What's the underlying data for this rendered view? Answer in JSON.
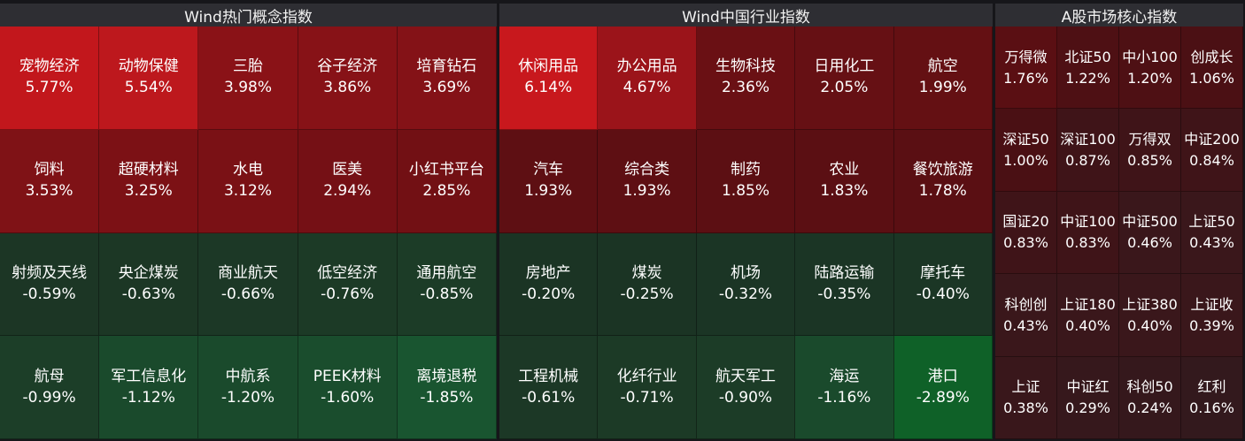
{
  "panels": [
    {
      "title": "Wind热门概念指数",
      "cells": [
        {
          "name": "宠物经济",
          "pct": "5.77%",
          "color": "#c2171c"
        },
        {
          "name": "动物保健",
          "pct": "5.54%",
          "color": "#bd181d"
        },
        {
          "name": "三胎",
          "pct": "3.98%",
          "color": "#8a1217"
        },
        {
          "name": "谷子经济",
          "pct": "3.86%",
          "color": "#871217"
        },
        {
          "name": "培育钻石",
          "pct": "3.69%",
          "color": "#841217"
        },
        {
          "name": "饲料",
          "pct": "3.53%",
          "color": "#7f1216"
        },
        {
          "name": "超硬材料",
          "pct": "3.25%",
          "color": "#7c1115"
        },
        {
          "name": "水电",
          "pct": "3.12%",
          "color": "#7a1115"
        },
        {
          "name": "医美",
          "pct": "2.94%",
          "color": "#751015"
        },
        {
          "name": "小红书平台",
          "pct": "2.85%",
          "color": "#721014"
        },
        {
          "name": "射频及天线",
          "pct": "-0.59%",
          "color": "#1c3625"
        },
        {
          "name": "央企煤炭",
          "pct": "-0.63%",
          "color": "#1c3725"
        },
        {
          "name": "商业航天",
          "pct": "-0.66%",
          "color": "#1c3826"
        },
        {
          "name": "低空经济",
          "pct": "-0.76%",
          "color": "#1c3a26"
        },
        {
          "name": "通用航空",
          "pct": "-0.85%",
          "color": "#1c3c27"
        },
        {
          "name": "航母",
          "pct": "-0.99%",
          "color": "#1c3e28"
        },
        {
          "name": "军工信息化",
          "pct": "-1.12%",
          "color": "#1a4a2c"
        },
        {
          "name": "中航系",
          "pct": "-1.20%",
          "color": "#1a4a2c"
        },
        {
          "name": "PEEK材料",
          "pct": "-1.60%",
          "color": "#1a4d2d"
        },
        {
          "name": "离境退税",
          "pct": "-1.85%",
          "color": "#195530"
        }
      ]
    },
    {
      "title": "Wind中国行业指数",
      "cells": [
        {
          "name": "休闲用品",
          "pct": "6.14%",
          "color": "#c8181d"
        },
        {
          "name": "办公用品",
          "pct": "4.67%",
          "color": "#9b141a"
        },
        {
          "name": "生物科技",
          "pct": "2.36%",
          "color": "#6a1014"
        },
        {
          "name": "日用化工",
          "pct": "2.05%",
          "color": "#661014"
        },
        {
          "name": "航空",
          "pct": "1.99%",
          "color": "#641013"
        },
        {
          "name": "汽车",
          "pct": "1.93%",
          "color": "#5e0f13"
        },
        {
          "name": "综合类",
          "pct": "1.93%",
          "color": "#5e0f13"
        },
        {
          "name": "制药",
          "pct": "1.85%",
          "color": "#5c0f13"
        },
        {
          "name": "农业",
          "pct": "1.83%",
          "color": "#5b0f13"
        },
        {
          "name": "餐饮旅游",
          "pct": "1.78%",
          "color": "#5a0f13"
        },
        {
          "name": "房地产",
          "pct": "-0.20%",
          "color": "#1b3424"
        },
        {
          "name": "煤炭",
          "pct": "-0.25%",
          "color": "#1b3424"
        },
        {
          "name": "机场",
          "pct": "-0.32%",
          "color": "#1b3525"
        },
        {
          "name": "陆路运输",
          "pct": "-0.35%",
          "color": "#1b3525"
        },
        {
          "name": "摩托车",
          "pct": "-0.40%",
          "color": "#1b3625"
        },
        {
          "name": "工程机械",
          "pct": "-0.61%",
          "color": "#1c3826"
        },
        {
          "name": "化纤行业",
          "pct": "-0.71%",
          "color": "#1c3a26"
        },
        {
          "name": "航天军工",
          "pct": "-0.90%",
          "color": "#1c3c27"
        },
        {
          "name": "海运",
          "pct": "-1.16%",
          "color": "#1a4a2c"
        },
        {
          "name": "港口",
          "pct": "-2.89%",
          "color": "#0f6128"
        }
      ]
    },
    {
      "title": "A股市场核心指数",
      "cells": [
        {
          "name": "万得微",
          "pct": "1.76%",
          "color": "#5a0f13"
        },
        {
          "name": "北证50",
          "pct": "1.22%",
          "color": "#4e1014"
        },
        {
          "name": "中小100",
          "pct": "1.20%",
          "color": "#4e1014"
        },
        {
          "name": "创成长",
          "pct": "1.06%",
          "color": "#4b1014"
        },
        {
          "name": "深证50",
          "pct": "1.00%",
          "color": "#4a1014"
        },
        {
          "name": "深证100",
          "pct": "0.87%",
          "color": "#3f1418"
        },
        {
          "name": "万得双",
          "pct": "0.85%",
          "color": "#3f1418"
        },
        {
          "name": "中证200",
          "pct": "0.84%",
          "color": "#3f1418"
        },
        {
          "name": "国证20",
          "pct": "0.83%",
          "color": "#3f1418"
        },
        {
          "name": "中证100",
          "pct": "0.83%",
          "color": "#3f1418"
        },
        {
          "name": "中证500",
          "pct": "0.46%",
          "color": "#3a171b"
        },
        {
          "name": "上证50",
          "pct": "0.43%",
          "color": "#3a171b"
        },
        {
          "name": "科创创",
          "pct": "0.43%",
          "color": "#3a171b"
        },
        {
          "name": "上证180",
          "pct": "0.40%",
          "color": "#3a171b"
        },
        {
          "name": "上证380",
          "pct": "0.40%",
          "color": "#3a171b"
        },
        {
          "name": "上证收",
          "pct": "0.39%",
          "color": "#3a171b"
        },
        {
          "name": "上证",
          "pct": "0.38%",
          "color": "#39171b"
        },
        {
          "name": "中证红",
          "pct": "0.29%",
          "color": "#36181c"
        },
        {
          "name": "科创50",
          "pct": "0.24%",
          "color": "#35181c"
        },
        {
          "name": "红利",
          "pct": "0.16%",
          "color": "#33191d"
        }
      ]
    }
  ]
}
